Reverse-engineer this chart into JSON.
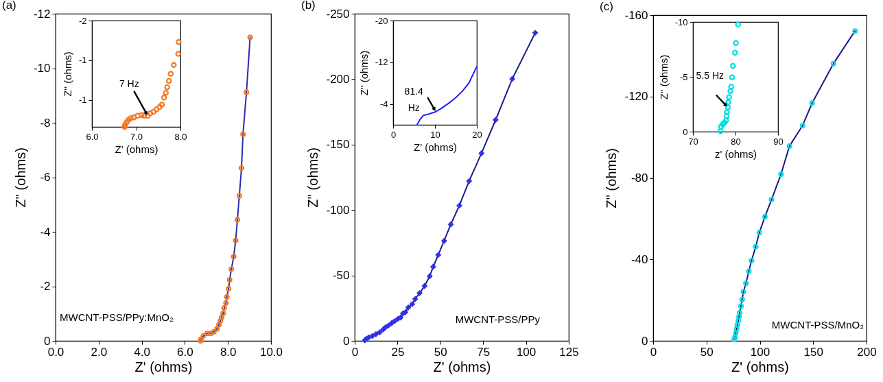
{
  "chart_data": [
    {
      "type": "line",
      "title": "(a)",
      "xlabel": "Z' (ohms)",
      "ylabel": "Z'' (ohms)",
      "xlim": [
        0,
        10
      ],
      "ylim": [
        0,
        -12
      ],
      "xticks": [
        {
          "value": 0,
          "label": "0.0"
        },
        {
          "value": 2,
          "label": "2.0"
        },
        {
          "value": 4,
          "label": "4.0"
        },
        {
          "value": 6,
          "label": "6.0"
        },
        {
          "value": 8,
          "label": "8.0"
        },
        {
          "value": 10,
          "label": "10.0"
        }
      ],
      "yticks": [
        0,
        -2,
        -4,
        -6,
        -8,
        -10,
        -12
      ],
      "marker": "circle",
      "line_style": "solid",
      "annotations": [
        "MWCNT-PSS/PPy:MnO₂"
      ],
      "series": [
        {
          "type": "line",
          "marker": "none",
          "color": "#2b2bb0",
          "x": [
            6.73,
            6.75,
            6.86,
            7.04,
            7.21,
            7.35,
            7.49,
            7.58,
            7.65,
            7.71,
            7.78,
            7.83,
            7.91,
            7.95,
            8.03,
            8.08,
            8.16,
            8.27,
            8.36,
            8.44,
            8.53,
            8.63,
            8.7,
            8.86,
            9.03
          ],
          "values": [
            0,
            -0.06,
            -0.18,
            -0.27,
            -0.27,
            -0.33,
            -0.44,
            -0.59,
            -0.73,
            -0.86,
            -1.01,
            -1.21,
            -1.39,
            -1.61,
            -1.91,
            -2.24,
            -2.63,
            -3.09,
            -3.68,
            -4.44,
            -5.32,
            -6.34,
            -7.58,
            -9.12,
            -11.13
          ]
        },
        {
          "type": "scatter",
          "color": "#f07a28",
          "x": [
            6.73,
            6.75,
            6.86,
            7.04,
            7.21,
            7.35,
            7.49,
            7.58,
            7.65,
            7.71,
            7.78,
            7.83,
            7.91,
            7.95,
            8.03,
            8.08,
            8.16,
            8.27,
            8.36,
            8.44,
            8.53,
            8.63,
            8.7,
            8.86,
            9.03
          ],
          "values": [
            0,
            -0.06,
            -0.18,
            -0.27,
            -0.27,
            -0.33,
            -0.44,
            -0.59,
            -0.73,
            -0.86,
            -1.01,
            -1.21,
            -1.39,
            -1.61,
            -1.91,
            -2.24,
            -2.63,
            -3.09,
            -3.68,
            -4.44,
            -5.32,
            -6.34,
            -7.58,
            -9.12,
            -11.13
          ]
        }
      ]
    },
    {
      "type": "scatter",
      "xlabel": "Z' (ohms)",
      "ylabel": "Z'' (ohms)",
      "xlim": [
        6,
        8
      ],
      "ylim": [
        -0.66,
        -2
      ],
      "xticks": [
        {
          "value": 6,
          "label": "6.0"
        },
        {
          "value": 7,
          "label": "7.0"
        },
        {
          "value": 8,
          "label": "8.0"
        }
      ],
      "yticks": [
        -2,
        {
          "value": -1.5,
          "label": "-1"
        },
        -1
      ],
      "marker": "circle",
      "annotations": [
        {
          "text": "7  Hz",
          "x": 7.26,
          "y": -0.8
        }
      ],
      "series": [
        {
          "color": "#f07a28",
          "x": [
            7.96,
            7.95,
            7.85,
            7.78,
            7.74,
            7.7,
            7.67,
            7.63,
            7.58,
            7.53,
            7.46,
            7.39,
            7.32,
            7.26,
            7.18,
            7.12,
            7.03,
            6.95,
            6.88,
            6.83,
            6.79,
            6.75,
            6.74
          ],
          "values": [
            -1.73,
            -1.58,
            -1.44,
            -1.33,
            -1.24,
            -1.16,
            -1.09,
            -1.03,
            -0.94,
            -0.91,
            -0.88,
            -0.85,
            -0.83,
            -0.8,
            -0.8,
            -0.81,
            -0.8,
            -0.78,
            -0.77,
            -0.75,
            -0.72,
            -0.69,
            -0.66
          ]
        }
      ]
    },
    {
      "type": "line",
      "title": "(b)",
      "xlabel": "Z' (ohms)",
      "ylabel": "Z'' (ohms)",
      "xlim": [
        0,
        125
      ],
      "ylim": [
        0,
        -250
      ],
      "xticks": [
        0,
        25,
        50,
        75,
        100,
        125
      ],
      "yticks": [
        0,
        -50,
        -100,
        -150,
        -200,
        -250
      ],
      "marker": "diamond",
      "line_style": "solid",
      "annotations": [
        "MWCNT-PSS/PPy"
      ],
      "series": [
        {
          "type": "line",
          "marker": "none",
          "color": "#1c1c8c",
          "x": [
            5.9,
            6.7,
            8.2,
            10.3,
            12.4,
            14.6,
            16.7,
            17.9,
            19.6,
            21.5,
            23.2,
            25.3,
            26.8,
            28.2,
            29.6,
            31.3,
            33.6,
            35.3,
            37.9,
            40.8,
            43.8,
            45.8,
            48.8,
            52.2,
            56.1,
            61.1,
            66.8,
            74.0,
            82.3,
            92.0,
            105.4
          ],
          "values": [
            -0.4,
            -1.5,
            -2.6,
            -3.7,
            -5.1,
            -6.6,
            -8.8,
            -10.3,
            -11.6,
            -13.5,
            -15.0,
            -16.9,
            -17.8,
            -21.0,
            -21.9,
            -25.5,
            -28.1,
            -32.0,
            -36.5,
            -41.9,
            -49.4,
            -56.6,
            -65.7,
            -76.4,
            -89.0,
            -103.4,
            -122.1,
            -143.3,
            -168.9,
            -200.2,
            -235.4
          ]
        },
        {
          "type": "scatter",
          "color": "#3030f0",
          "x": [
            5.9,
            6.7,
            8.2,
            10.3,
            12.4,
            14.6,
            16.7,
            17.9,
            19.6,
            21.5,
            23.2,
            25.3,
            26.8,
            28.2,
            29.6,
            31.3,
            33.6,
            35.3,
            37.9,
            40.8,
            43.8,
            45.8,
            48.8,
            52.2,
            56.1,
            61.1,
            66.8,
            74.0,
            82.3,
            92.0,
            105.4
          ],
          "values": [
            -0.4,
            -1.5,
            -2.6,
            -3.7,
            -5.1,
            -6.6,
            -8.8,
            -10.3,
            -11.6,
            -13.5,
            -15.0,
            -16.9,
            -17.8,
            -21.0,
            -21.9,
            -25.5,
            -28.1,
            -32.0,
            -36.5,
            -41.9,
            -49.4,
            -56.6,
            -65.7,
            -76.4,
            -89.0,
            -103.4,
            -122.1,
            -143.3,
            -168.9,
            -200.2,
            -235.4
          ]
        }
      ]
    },
    {
      "type": "line",
      "xlabel": "Z' (ohms)",
      "ylabel": "Z'' (ohms)",
      "xlim": [
        0,
        20
      ],
      "ylim": [
        0,
        -20
      ],
      "xticks": [
        0,
        10,
        20
      ],
      "yticks": [
        -20,
        -12,
        -4
      ],
      "line_style": "solid",
      "annotations": [
        {
          "text": "81.4\nHz",
          "x": 10.2,
          "y": -2.5
        }
      ],
      "series": [
        {
          "color": "#1f1fff",
          "x": [
            5.7,
            6.4,
            7.2,
            8.3,
            9.4,
            10.2,
            11.6,
            13.2,
            14.8,
            16.5,
            18.1,
            20.0
          ],
          "values": [
            0,
            -1.0,
            -1.8,
            -2.0,
            -2.3,
            -2.5,
            -3.2,
            -4.1,
            -5.1,
            -6.4,
            -8.0,
            -11.2
          ]
        }
      ]
    },
    {
      "type": "line",
      "title": "(c)",
      "xlabel": "Z' (ohms)",
      "ylabel": "Z'' (ohms)",
      "xlim": [
        0,
        200
      ],
      "ylim": [
        0,
        -160
      ],
      "xticks": [
        0,
        50,
        100,
        150,
        200
      ],
      "yticks": [
        0,
        -40,
        -80,
        -120,
        -160
      ],
      "marker": "circle",
      "line_style": "solid",
      "annotations": [
        "MWCNT-PSS/MnO₂"
      ],
      "series": [
        {
          "type": "line",
          "marker": "none",
          "color": "#1a1a8c",
          "x": [
            75.9,
            76.6,
            77.5,
            78.2,
            78.9,
            79.8,
            80.5,
            81.1,
            82.3,
            83.4,
            84.6,
            86.9,
            89.7,
            92.2,
            96.1,
            99.5,
            104.8,
            111.0,
            119.8,
            127.8,
            140.0,
            149.0,
            169.0,
            189.2
          ],
          "values": [
            -0.7,
            -1.7,
            -3.9,
            -5.9,
            -7.8,
            -9.9,
            -11.9,
            -13.8,
            -17.1,
            -20.3,
            -24.1,
            -28.2,
            -34.2,
            -39.4,
            -46.2,
            -53.2,
            -61.0,
            -69.4,
            -81.8,
            -95.7,
            -105.7,
            -116.8,
            -136.2,
            -152.2
          ]
        },
        {
          "type": "scatter",
          "color": "#00dede",
          "x": [
            75.9,
            76.6,
            77.5,
            78.2,
            78.9,
            79.8,
            80.5,
            81.1,
            82.3,
            83.4,
            84.6,
            86.9,
            89.7,
            92.2,
            96.1,
            99.5,
            104.8,
            111.0,
            119.8,
            127.8,
            140.0,
            149.0,
            169.0,
            189.2
          ],
          "values": [
            -0.7,
            -1.7,
            -3.9,
            -5.9,
            -7.8,
            -9.9,
            -11.9,
            -13.8,
            -17.1,
            -20.3,
            -24.1,
            -28.2,
            -34.2,
            -39.4,
            -46.2,
            -53.2,
            -61.0,
            -69.4,
            -81.8,
            -95.7,
            -105.7,
            -116.8,
            -136.2,
            -152.2
          ]
        }
      ]
    },
    {
      "type": "scatter",
      "xlabel": "z' (ohms)",
      "ylabel": "Z'' (ohms)",
      "xlim": [
        70,
        90
      ],
      "ylim": [
        0,
        -10
      ],
      "xticks": [
        70,
        80,
        90
      ],
      "yticks": [
        0,
        -5,
        -10
      ],
      "marker": "circle",
      "annotations": [
        {
          "text": "5.5 Hz",
          "x": 78.2,
          "y": -2.22
        }
      ],
      "series": [
        {
          "color": "#00dede",
          "x": [
            80.6,
            80.1,
            79.9,
            79.4,
            79.2,
            79.0,
            78.8,
            78.5,
            78.3,
            78.2,
            78.0,
            77.9,
            77.8,
            77.4,
            77.0,
            76.6,
            76.5
          ],
          "values": [
            -9.76,
            -8.08,
            -7.21,
            -6.0,
            -4.95,
            -4.1,
            -3.7,
            -3.15,
            -2.69,
            -2.22,
            -1.78,
            -1.41,
            -1.03,
            -0.83,
            -0.67,
            -0.46,
            -0.06
          ]
        }
      ]
    }
  ]
}
